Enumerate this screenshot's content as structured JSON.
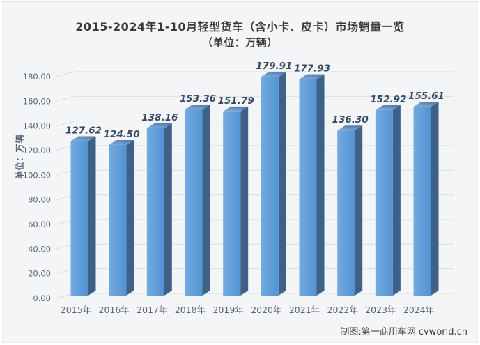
{
  "footer": {
    "credit": "制图:第一商用车网 cvworld.cn"
  },
  "chart_data": {
    "type": "bar",
    "style": "3d-column",
    "title": "2015-2024年1-10月轻型货车（含小卡、皮卡）市场销量一览",
    "subtitle": "（单位：万辆）",
    "ylabel": "单位：万辆",
    "xlabel": "",
    "categories": [
      "2015年",
      "2016年",
      "2017年",
      "2018年",
      "2019年",
      "2020年",
      "2021年",
      "2022年",
      "2023年",
      "2024年"
    ],
    "values": [
      127.62,
      124.5,
      138.16,
      153.36,
      151.79,
      179.91,
      177.93,
      136.3,
      152.92,
      155.61
    ],
    "ylim": [
      0,
      180
    ],
    "ytick_step": 20,
    "ytick_decimals": 2,
    "value_label_decimals": 2,
    "grid": true,
    "legend": "none",
    "colors": {
      "background": "#f4f5f6",
      "gridline": "#dbe0e8",
      "axis_text": "#5a6477",
      "data_label": "#3a4a63",
      "title_text": "#3a3a3a",
      "footer_text": "#3f3f3f",
      "bar_front_light": "#74aae0",
      "bar_front_dark": "#5293d2",
      "bar_top_light": "#8ab4de",
      "bar_top_dark": "#4f7dae",
      "bar_side": "#3e6187"
    }
  }
}
